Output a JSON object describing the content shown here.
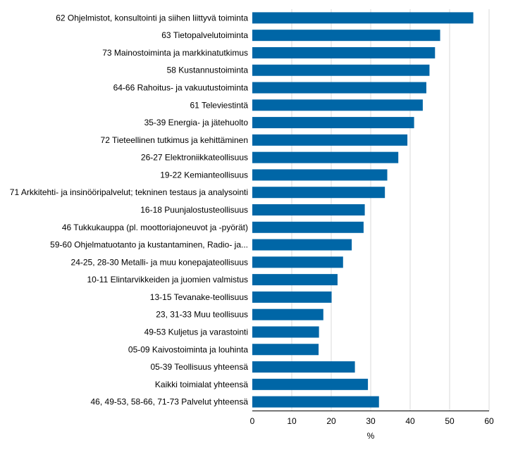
{
  "chart_data": {
    "type": "bar",
    "orientation": "horizontal",
    "categories": [
      "62 Ohjelmistot, konsultointi ja siihen liittyvä toiminta",
      "63 Tietopalvelutoiminta",
      "73 Mainostoiminta ja markkinatutkimus",
      "58 Kustannustoiminta",
      "64-66 Rahoitus- ja vakuutustoiminta",
      "61 Televiestintä",
      "35-39 Energia- ja jätehuolto",
      "72 Tieteellinen tutkimus ja kehittäminen",
      "26-27 Elektroniikkateollisuus",
      "19-22 Kemianteollisuus",
      "71 Arkkitehti- ja insinööripalvelut; tekninen testaus ja analysointi",
      "16-18 Puunjalostusteollisuus",
      "46 Tukkukauppa (pl. moottoriajoneuvot ja -pyörät)",
      "59-60 Ohjelmatuotanto ja kustantaminen, Radio- ja...",
      "24-25, 28-30 Metalli- ja muu konepajateollisuus",
      "10-11 Elintarvikkeiden ja juomien valmistus",
      "13-15 Tevanake-teollisuus",
      "23, 31-33 Muu teollisuus",
      "49-53 Kuljetus ja varastointi",
      "05-09 Kaivostoiminta ja louhinta",
      "05-39 Teollisuus yhteensä",
      "Kaikki toimialat yhteensä",
      "46, 49-53, 58-66, 71-73 Palvelut yhteensä"
    ],
    "values": [
      56,
      47.6,
      46.3,
      44.9,
      44.1,
      43.2,
      41,
      39.3,
      37,
      34.2,
      33.6,
      28.5,
      28.2,
      25.2,
      23,
      21.6,
      20.1,
      18,
      16.9,
      16.8,
      26,
      29.3,
      32.1
    ],
    "xlabel": "%",
    "ylabel": "",
    "title": "",
    "xlim": [
      0,
      60
    ],
    "xticks": [
      "0",
      "10",
      "20",
      "30",
      "40",
      "50",
      "60"
    ],
    "grid": "vertical",
    "bar_color": "#0066a6",
    "grid_color": "#d9d9d9"
  }
}
